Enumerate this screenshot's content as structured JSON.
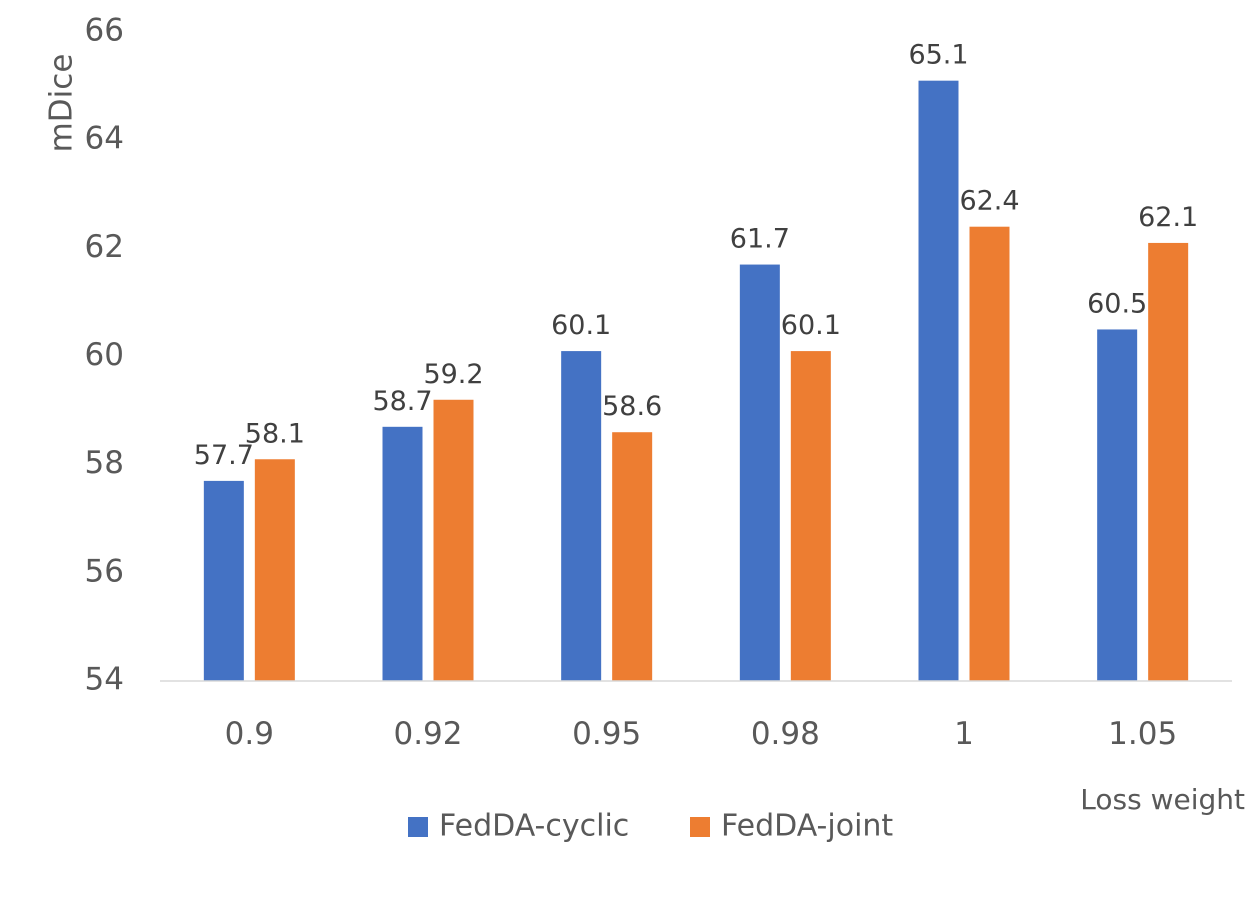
{
  "chart_data": {
    "type": "bar",
    "title": "",
    "xlabel": "Loss weight",
    "ylabel": "mDice",
    "categories": [
      "0.9",
      "0.92",
      "0.95",
      "0.98",
      "1",
      "1.05"
    ],
    "series": [
      {
        "name": "FedDA-cyclic",
        "color": "#4472c4",
        "values": [
          57.7,
          58.7,
          60.1,
          61.7,
          65.1,
          60.5
        ]
      },
      {
        "name": "FedDA-joint",
        "color": "#ed7d31",
        "values": [
          58.1,
          59.2,
          58.6,
          60.1,
          62.4,
          62.1
        ]
      }
    ],
    "ylim": [
      54,
      66
    ],
    "yticks": [
      54,
      56,
      58,
      60,
      62,
      64,
      66
    ],
    "grid": false,
    "legend_position": "bottom"
  }
}
